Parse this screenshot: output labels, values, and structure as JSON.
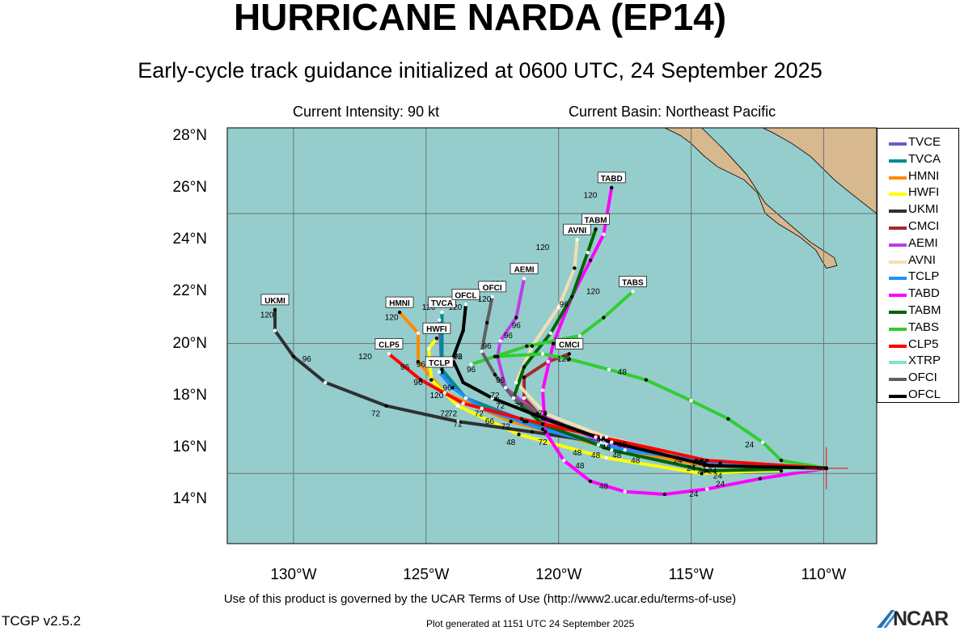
{
  "title": "HURRICANE NARDA (EP14)",
  "subtitle": "Early-cycle track guidance initialized at 0600 UTC, 24 September 2025",
  "current_intensity": "Current Intensity: 90 kt",
  "current_basin": "Current Basin: Northeast Pacific",
  "footer": {
    "terms": "Use of this product is governed by the UCAR Terms of Use (http://www2.ucar.edu/terms-of-use)",
    "version": "TCGP v2.5.2",
    "generated": "Plot generated at 1151 UTC   24 September 2025",
    "logo_text": "NCAR"
  },
  "colors": {
    "ocean": "#95cdcd",
    "land": "#d7b88f",
    "grid": "#707070"
  },
  "chart_data": {
    "type": "line",
    "xlim": [
      -132.5,
      -108
    ],
    "ylim": [
      12.3,
      28.3
    ],
    "x_ticks": [
      {
        "value": -130,
        "label": "130°W"
      },
      {
        "value": -125,
        "label": "125°W"
      },
      {
        "value": -120,
        "label": "120°W"
      },
      {
        "value": -115,
        "label": "115°W"
      },
      {
        "value": -110,
        "label": "110°W"
      }
    ],
    "y_ticks": [
      {
        "value": 14,
        "label": "14°N"
      },
      {
        "value": 16,
        "label": "16°N"
      },
      {
        "value": 18,
        "label": "18°N"
      },
      {
        "value": 20,
        "label": "20°N"
      },
      {
        "value": 22,
        "label": "22°N"
      },
      {
        "value": 24,
        "label": "24°N"
      },
      {
        "value": 26,
        "label": "26°N"
      },
      {
        "value": 28,
        "label": "28°N"
      }
    ],
    "grid_lon": [
      -130,
      -125,
      -120,
      -115,
      -110
    ],
    "grid_lat": [
      15,
      20,
      25
    ],
    "current_position": {
      "lon": -109.9,
      "lat": 15.2
    },
    "legend_placement": "right",
    "series": [
      {
        "name": "TVCE",
        "color": "#6a5acd",
        "label": "",
        "points": [
          [
            -109.9,
            15.2
          ],
          [
            -114.2,
            15.3
          ],
          [
            -118.2,
            16.1
          ],
          [
            -121.2,
            17.0
          ],
          [
            -123.5,
            17.9
          ],
          [
            -124.4,
            18.9
          ],
          [
            -124.5,
            20.9
          ]
        ]
      },
      {
        "name": "TVCA",
        "color": "#008b8b",
        "label": "TVCA",
        "points": [
          [
            -109.9,
            15.2
          ],
          [
            -114.2,
            15.3
          ],
          [
            -118.2,
            16.1
          ],
          [
            -121.3,
            17.0
          ],
          [
            -123.5,
            17.9
          ],
          [
            -124.4,
            19.0
          ],
          [
            -124.4,
            21.2
          ]
        ]
      },
      {
        "name": "HMNI",
        "color": "#ff8c00",
        "label": "HMNI",
        "points": [
          [
            -109.9,
            15.2
          ],
          [
            -114.5,
            15.3
          ],
          [
            -118.5,
            16.1
          ],
          [
            -121.8,
            17.0
          ],
          [
            -124.3,
            18.1
          ],
          [
            -125.3,
            19.3
          ],
          [
            -125.3,
            20.4
          ],
          [
            -126.0,
            21.2
          ]
        ]
      },
      {
        "name": "HWFI",
        "color": "#ffff00",
        "label": "HWFI",
        "points": [
          [
            -109.9,
            15.2
          ],
          [
            -114.6,
            15.0
          ],
          [
            -118.2,
            15.6
          ],
          [
            -121.5,
            16.5
          ],
          [
            -123.8,
            17.6
          ],
          [
            -124.8,
            18.6
          ],
          [
            -124.9,
            19.8
          ],
          [
            -124.6,
            20.2
          ]
        ]
      },
      {
        "name": "UKMI",
        "color": "#303030",
        "label": "UKMI",
        "points": [
          [
            -109.9,
            15.2
          ],
          [
            -114.8,
            15.5
          ],
          [
            -118.4,
            16.2
          ],
          [
            -121.0,
            16.6
          ],
          [
            -123.8,
            17.0
          ],
          [
            -126.5,
            17.6
          ],
          [
            -128.8,
            18.5
          ],
          [
            -130.0,
            19.5
          ],
          [
            -130.7,
            20.5
          ],
          [
            -130.7,
            21.3
          ]
        ]
      },
      {
        "name": "CMCI",
        "color": "#a52a2a",
        "label": "CMCI",
        "points": [
          [
            -109.9,
            15.2
          ],
          [
            -114.8,
            15.5
          ],
          [
            -118.6,
            16.4
          ],
          [
            -120.6,
            17.1
          ],
          [
            -121.3,
            17.9
          ],
          [
            -121.3,
            18.7
          ],
          [
            -120.4,
            19.3
          ],
          [
            -119.6,
            19.6
          ]
        ]
      },
      {
        "name": "AEMI",
        "color": "#c03ce8",
        "label": "AEMI",
        "points": [
          [
            -109.9,
            15.2
          ],
          [
            -114.5,
            15.4
          ],
          [
            -118.3,
            16.2
          ],
          [
            -120.8,
            17.3
          ],
          [
            -122.0,
            18.3
          ],
          [
            -122.3,
            19.5
          ],
          [
            -122.2,
            20.1
          ],
          [
            -121.6,
            21.0
          ],
          [
            -121.3,
            22.5
          ]
        ]
      },
      {
        "name": "AVNI",
        "color": "#f5deb3",
        "label": "AVNI",
        "points": [
          [
            -109.9,
            15.2
          ],
          [
            -114.6,
            15.5
          ],
          [
            -118.2,
            16.4
          ],
          [
            -120.5,
            17.3
          ],
          [
            -121.6,
            18.5
          ],
          [
            -121.0,
            19.9
          ],
          [
            -120.0,
            21.4
          ],
          [
            -119.4,
            22.9
          ],
          [
            -119.3,
            24.0
          ]
        ]
      },
      {
        "name": "TCLP",
        "color": "#1e90ff",
        "label": "TCLP",
        "points": [
          [
            -109.9,
            15.2
          ],
          [
            -113.9,
            15.4
          ],
          [
            -117.5,
            15.9
          ],
          [
            -120.6,
            16.7
          ],
          [
            -122.9,
            17.5
          ],
          [
            -124.0,
            18.3
          ],
          [
            -124.5,
            18.9
          ]
        ]
      },
      {
        "name": "TABD",
        "color": "#ff00ff",
        "label": "TABD",
        "points": [
          [
            -109.9,
            15.2
          ],
          [
            -112.4,
            14.8
          ],
          [
            -114.4,
            14.4
          ],
          [
            -116.0,
            14.2
          ],
          [
            -117.5,
            14.3
          ],
          [
            -118.8,
            14.7
          ],
          [
            -119.8,
            15.5
          ],
          [
            -120.5,
            16.6
          ],
          [
            -120.6,
            18.2
          ],
          [
            -120.2,
            20.0
          ],
          [
            -119.5,
            21.8
          ],
          [
            -118.8,
            23.2
          ],
          [
            -118.3,
            24.2
          ],
          [
            -118.0,
            26.0
          ]
        ]
      },
      {
        "name": "TABM",
        "color": "#006400",
        "label": "TABM",
        "points": [
          [
            -109.9,
            15.2
          ],
          [
            -114.4,
            15.1
          ],
          [
            -118.0,
            15.9
          ],
          [
            -120.6,
            16.9
          ],
          [
            -121.7,
            17.9
          ],
          [
            -121.3,
            19.1
          ],
          [
            -120.3,
            20.4
          ],
          [
            -119.5,
            21.8
          ],
          [
            -118.9,
            23.5
          ],
          [
            -118.6,
            24.4
          ]
        ]
      },
      {
        "name": "TABS",
        "color": "#32cd32",
        "label": "TABS",
        "points": [
          [
            -109.9,
            15.2
          ],
          [
            -111.6,
            15.5
          ],
          [
            -112.3,
            16.2
          ],
          [
            -113.6,
            17.1
          ],
          [
            -115.0,
            17.8
          ],
          [
            -116.7,
            18.6
          ],
          [
            -118.1,
            19.0
          ],
          [
            -119.6,
            19.4
          ],
          [
            -120.6,
            19.6
          ],
          [
            -122.4,
            19.5
          ],
          [
            -123.3,
            19.2
          ],
          [
            -121.2,
            19.9
          ],
          [
            -119.2,
            20.3
          ],
          [
            -118.3,
            21.0
          ],
          [
            -117.2,
            22.0
          ]
        ]
      },
      {
        "name": "CLP5",
        "color": "#ff0000",
        "label": "CLP5",
        "points": [
          [
            -109.9,
            15.2
          ],
          [
            -114.4,
            15.5
          ],
          [
            -118.4,
            16.4
          ],
          [
            -121.4,
            17.1
          ],
          [
            -123.6,
            17.7
          ],
          [
            -125.2,
            18.6
          ],
          [
            -126.4,
            19.6
          ]
        ]
      },
      {
        "name": "XTRP",
        "color": "#7fe6c4",
        "label": "",
        "points": [
          [
            -109.9,
            15.2
          ],
          [
            -111.6,
            15.1
          ]
        ]
      },
      {
        "name": "OFCI",
        "color": "#606060",
        "label": "OFCI",
        "points": [
          [
            -109.9,
            15.2
          ],
          [
            -114.3,
            15.3
          ],
          [
            -118.0,
            16.2
          ],
          [
            -120.5,
            17.1
          ],
          [
            -121.7,
            17.9
          ],
          [
            -122.4,
            18.8
          ],
          [
            -122.9,
            19.7
          ],
          [
            -122.7,
            20.8
          ],
          [
            -122.5,
            21.8
          ]
        ]
      },
      {
        "name": "OFCL",
        "color": "#000000",
        "label": "OFCL",
        "points": [
          [
            -109.9,
            15.2
          ],
          [
            -114.3,
            15.3
          ],
          [
            -118.0,
            16.2
          ],
          [
            -120.5,
            17.1
          ],
          [
            -122.5,
            17.9
          ],
          [
            -123.6,
            18.5
          ],
          [
            -124.0,
            19.4
          ],
          [
            -123.6,
            20.5
          ],
          [
            -123.5,
            21.5
          ]
        ]
      }
    ],
    "point_labels": [
      {
        "text": "120",
        "lon": -118.8,
        "lat": 25.6
      },
      {
        "text": "120",
        "lon": -120.6,
        "lat": 23.6
      },
      {
        "text": "120",
        "lon": -122.3,
        "lat": 22.2
      },
      {
        "text": "120",
        "lon": -118.7,
        "lat": 21.9
      },
      {
        "text": "120",
        "lon": -123.9,
        "lat": 21.3
      },
      {
        "text": "120",
        "lon": -124.9,
        "lat": 21.3
      },
      {
        "text": "120",
        "lon": -122.8,
        "lat": 21.6
      },
      {
        "text": "120",
        "lon": -126.3,
        "lat": 20.9
      },
      {
        "text": "120",
        "lon": -131.0,
        "lat": 21.0
      },
      {
        "text": "120",
        "lon": -127.3,
        "lat": 19.4
      },
      {
        "text": "120",
        "lon": -119.8,
        "lat": 19.3
      },
      {
        "text": "120",
        "lon": -124.6,
        "lat": 17.9
      },
      {
        "text": "96",
        "lon": -119.8,
        "lat": 21.4
      },
      {
        "text": "96",
        "lon": -121.6,
        "lat": 20.6
      },
      {
        "text": "96",
        "lon": -121.9,
        "lat": 20.2
      },
      {
        "text": "96",
        "lon": -122.7,
        "lat": 19.8
      },
      {
        "text": "96",
        "lon": -125.8,
        "lat": 19.0
      },
      {
        "text": "96",
        "lon": -125.2,
        "lat": 19.1
      },
      {
        "text": "96",
        "lon": -124.6,
        "lat": 19.1
      },
      {
        "text": "96",
        "lon": -123.8,
        "lat": 19.4
      },
      {
        "text": "96",
        "lon": -123.3,
        "lat": 18.9
      },
      {
        "text": "96",
        "lon": -125.3,
        "lat": 18.4
      },
      {
        "text": "96",
        "lon": -124.2,
        "lat": 18.2
      },
      {
        "text": "96",
        "lon": -129.5,
        "lat": 19.3
      },
      {
        "text": "96",
        "lon": -122.2,
        "lat": 18.5
      },
      {
        "text": "72",
        "lon": -123.8,
        "lat": 19.4
      },
      {
        "text": "72",
        "lon": -122.4,
        "lat": 17.9
      },
      {
        "text": "72",
        "lon": -122.2,
        "lat": 17.5
      },
      {
        "text": "72",
        "lon": -121.5,
        "lat": 17.5
      },
      {
        "text": "72",
        "lon": -120.6,
        "lat": 17.2
      },
      {
        "text": "72",
        "lon": -123.0,
        "lat": 17.2
      },
      {
        "text": "72",
        "lon": -124.0,
        "lat": 17.2
      },
      {
        "text": "72",
        "lon": -124.3,
        "lat": 17.2
      },
      {
        "text": "72",
        "lon": -123.8,
        "lat": 16.8
      },
      {
        "text": "72",
        "lon": -126.9,
        "lat": 17.2
      },
      {
        "text": "72",
        "lon": -122.0,
        "lat": 16.7
      },
      {
        "text": "72",
        "lon": -120.6,
        "lat": 16.1
      },
      {
        "text": "66",
        "lon": -122.6,
        "lat": 16.9
      },
      {
        "text": "48",
        "lon": -118.4,
        "lat": 16.2
      },
      {
        "text": "48",
        "lon": -117.6,
        "lat": 16.0
      },
      {
        "text": "48",
        "lon": -118.2,
        "lat": 15.9
      },
      {
        "text": "48",
        "lon": -119.3,
        "lat": 15.7
      },
      {
        "text": "48",
        "lon": -118.6,
        "lat": 15.6
      },
      {
        "text": "48",
        "lon": -117.8,
        "lat": 15.6
      },
      {
        "text": "48",
        "lon": -121.8,
        "lat": 16.1
      },
      {
        "text": "48",
        "lon": -119.2,
        "lat": 15.2
      },
      {
        "text": "48",
        "lon": -117.1,
        "lat": 15.4
      },
      {
        "text": "48",
        "lon": -118.3,
        "lat": 14.4
      },
      {
        "text": "48",
        "lon": -117.6,
        "lat": 18.8
      },
      {
        "text": "24",
        "lon": -115.5,
        "lat": 15.4
      },
      {
        "text": "24",
        "lon": -114.8,
        "lat": 15.3
      },
      {
        "text": "24",
        "lon": -114.6,
        "lat": 15.0
      },
      {
        "text": "24",
        "lon": -114.2,
        "lat": 15.0
      },
      {
        "text": "24",
        "lon": -114.0,
        "lat": 14.8
      },
      {
        "text": "24",
        "lon": -113.9,
        "lat": 14.5
      },
      {
        "text": "24",
        "lon": -114.9,
        "lat": 14.1
      },
      {
        "text": "24",
        "lon": -112.8,
        "lat": 16.0
      },
      {
        "text": "24",
        "lon": -115.0,
        "lat": 15.1
      }
    ],
    "land": [
      [
        [
          -117.0,
          28.3
        ],
        [
          -114.6,
          28.3
        ],
        [
          -113.8,
          27.5
        ],
        [
          -112.9,
          26.5
        ],
        [
          -112.2,
          25.4
        ],
        [
          -111.3,
          24.6
        ],
        [
          -110.5,
          23.9
        ],
        [
          -109.6,
          23.3
        ],
        [
          -109.5,
          23.0
        ],
        [
          -109.9,
          22.9
        ],
        [
          -110.3,
          23.6
        ],
        [
          -110.9,
          24.1
        ],
        [
          -111.7,
          24.6
        ],
        [
          -112.2,
          25.0
        ],
        [
          -112.5,
          25.8
        ],
        [
          -113.0,
          26.3
        ],
        [
          -114.0,
          26.8
        ],
        [
          -114.5,
          27.2
        ],
        [
          -115.0,
          27.7
        ],
        [
          -115.4,
          28.0
        ],
        [
          -116.0,
          28.3
        ]
      ],
      [
        [
          -112.3,
          28.3
        ],
        [
          -108,
          28.3
        ],
        [
          -108,
          25.0
        ],
        [
          -109.0,
          25.8
        ],
        [
          -109.6,
          26.3
        ],
        [
          -110.5,
          27.2
        ],
        [
          -111.2,
          27.7
        ],
        [
          -111.9,
          28.1
        ]
      ]
    ]
  }
}
